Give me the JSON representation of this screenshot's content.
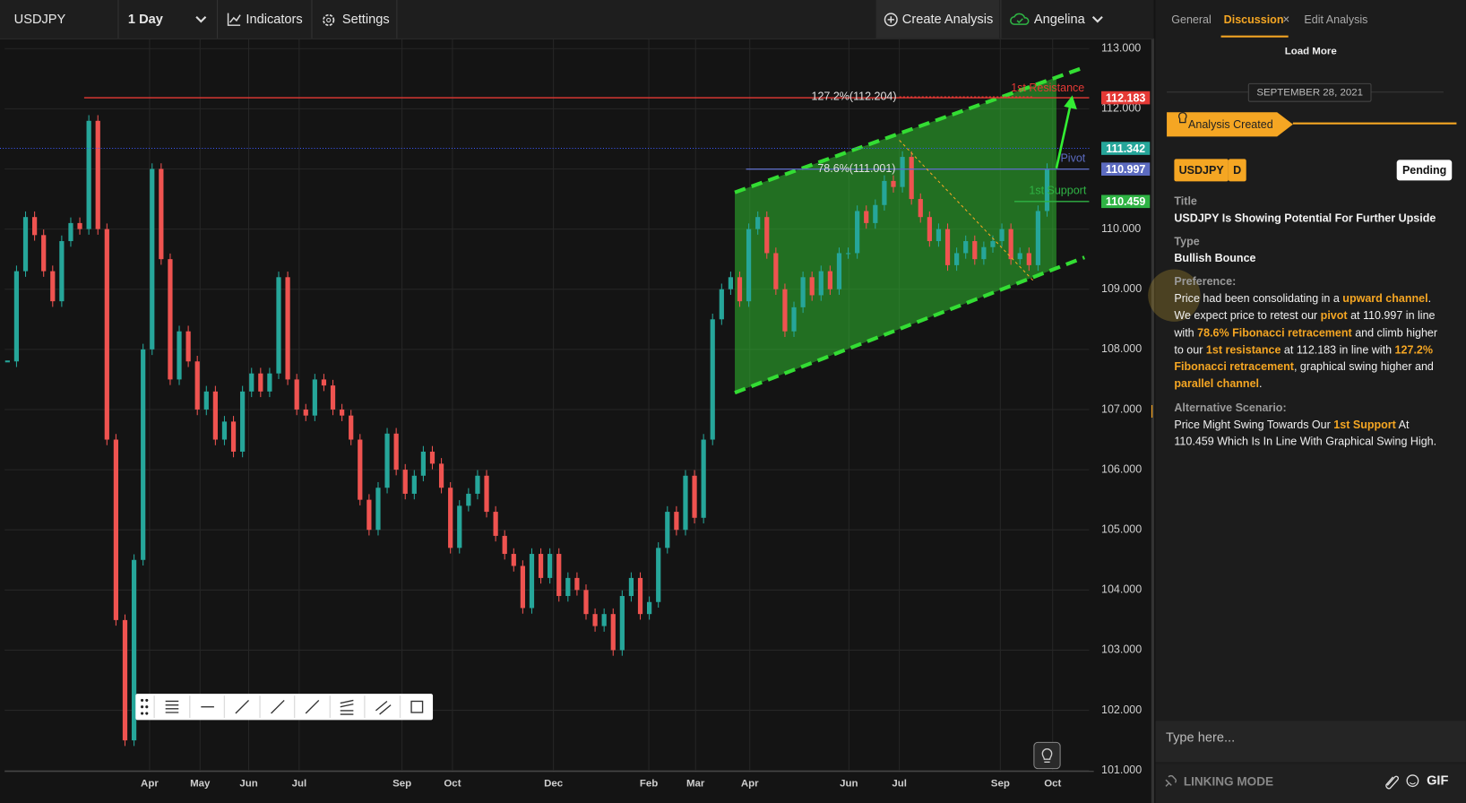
{
  "toolbar": {
    "symbol": "USDJPY",
    "interval": "1 Day",
    "indicators": "Indicators",
    "settings": "Settings",
    "create": "Create Analysis",
    "user": "Angelina"
  },
  "chart_data": {
    "type": "candlestick",
    "up_color": "#26a69a",
    "down_color": "#ef5350",
    "ylim": [
      101,
      113
    ],
    "yticks": [
      {
        "value": 101,
        "label": "101.000"
      },
      {
        "value": 102,
        "label": "102.000"
      },
      {
        "value": 103,
        "label": "103.000"
      },
      {
        "value": 104,
        "label": "104.000"
      },
      {
        "value": 105,
        "label": "105.000"
      },
      {
        "value": 106,
        "label": "106.000"
      },
      {
        "value": 107,
        "label": "107.000"
      },
      {
        "value": 108,
        "label": "108.000"
      },
      {
        "value": 109,
        "label": "109.000"
      },
      {
        "value": 110,
        "label": "110.000"
      },
      {
        "value": 111,
        "label": "111.000"
      },
      {
        "value": 112,
        "label": "112.000"
      },
      {
        "value": 113,
        "label": "113.000"
      }
    ],
    "grid": true,
    "month_labels": [
      "Apr",
      "May",
      "Jun",
      "Jul",
      "Sep",
      "Oct",
      "Dec",
      "Feb",
      "Mar",
      "Apr",
      "Jun",
      "Jul",
      "Sep",
      "Oct"
    ],
    "closes": [
      107.8,
      109.3,
      110.2,
      109.9,
      109.3,
      108.8,
      109.8,
      110.1,
      110.0,
      111.8,
      110.0,
      106.5,
      103.5,
      101.5,
      104.5,
      108.0,
      111.0,
      109.5,
      107.5,
      108.3,
      107.8,
      107.0,
      107.3,
      106.5,
      106.8,
      106.3,
      107.3,
      107.6,
      107.3,
      107.6,
      109.2,
      107.5,
      107.0,
      106.9,
      107.5,
      107.4,
      107.0,
      106.9,
      106.5,
      105.5,
      105.0,
      105.7,
      106.6,
      106.0,
      105.6,
      105.9,
      106.3,
      106.1,
      105.7,
      104.7,
      105.4,
      105.6,
      105.9,
      105.3,
      104.9,
      104.6,
      104.4,
      103.7,
      104.6,
      104.2,
      104.6,
      103.9,
      104.2,
      104.0,
      103.6,
      103.4,
      103.6,
      103.0,
      103.9,
      104.2,
      103.6,
      103.8,
      104.7,
      105.3,
      105.0,
      105.9,
      105.2,
      106.5,
      108.5,
      109.0,
      109.2,
      108.8,
      110.0,
      110.2,
      109.6,
      109.0,
      108.3,
      108.7,
      109.2,
      108.9,
      109.3,
      109.0,
      109.6,
      109.6,
      110.3,
      110.1,
      110.4,
      110.8,
      110.7,
      111.2,
      110.5,
      110.2,
      109.8,
      110.0,
      109.4,
      109.6,
      109.8,
      109.5,
      109.7,
      109.8,
      110.0,
      109.5,
      109.6,
      109.4,
      110.3,
      111.0
    ],
    "levels": [
      {
        "name": "1st Resistance",
        "value": 112.183,
        "label": "112.183",
        "color": "#e53935"
      },
      {
        "name": "Pivot",
        "value": 110.997,
        "label": "110.997",
        "color": "#5c6bc0"
      },
      {
        "name": "1st Support",
        "value": 110.459,
        "label": "110.459",
        "color": "#2fb344"
      }
    ],
    "current": {
      "value": 111.342,
      "label": "111.342",
      "color": "#26a69a"
    },
    "fib_labels": [
      "127.2%(112.204)",
      "78.6%(111.001)"
    ],
    "channel": {
      "upper": [
        110.61,
        112.69
      ],
      "lower": [
        107.28,
        109.53
      ],
      "color": "#33dd33"
    }
  },
  "sidebar": {
    "tabs": [
      "General",
      "Discussion",
      "Edit Analysis"
    ],
    "close": "×",
    "load_more": "Load More",
    "date": "SEPTEMBER 28, 2021",
    "event": "Analysis Created",
    "tags": [
      "USDJPY",
      "D"
    ],
    "status": "Pending",
    "title_label": "Title",
    "title": "USDJPY Is Showing Potential For Further Upside",
    "type_label": "Type",
    "type": "Bullish Bounce",
    "preference_label": "Preference:",
    "preference": [
      {
        "text": "Price had been consolidating in a "
      },
      {
        "text": "upward channel",
        "highlight": true
      },
      {
        "text": ". We expect price to retest our "
      },
      {
        "text": "pivot",
        "highlight": true
      },
      {
        "text": " at 110.997 in line with "
      },
      {
        "text": "78.6% Fibonacci retracement",
        "highlight": true
      },
      {
        "text": " and climb higher to our "
      },
      {
        "text": "1st resistance",
        "highlight": true
      },
      {
        "text": " at 112.183 in line with "
      },
      {
        "text": "127.2% Fibonacci retracement",
        "highlight": true
      },
      {
        "text": ", graphical swing higher and "
      },
      {
        "text": "parallel channel",
        "highlight": true
      },
      {
        "text": "."
      }
    ],
    "alternative_label": "Alternative Scenario:",
    "alternative": [
      {
        "text": "Price Might Swing Towards Our "
      },
      {
        "text": "1st Support",
        "highlight": true
      },
      {
        "text": " At 110.459 Which Is In Line With Graphical Swing High."
      }
    ],
    "input_placeholder": "Type here...",
    "linking_mode": "LINKING MODE",
    "gif": "GIF"
  }
}
